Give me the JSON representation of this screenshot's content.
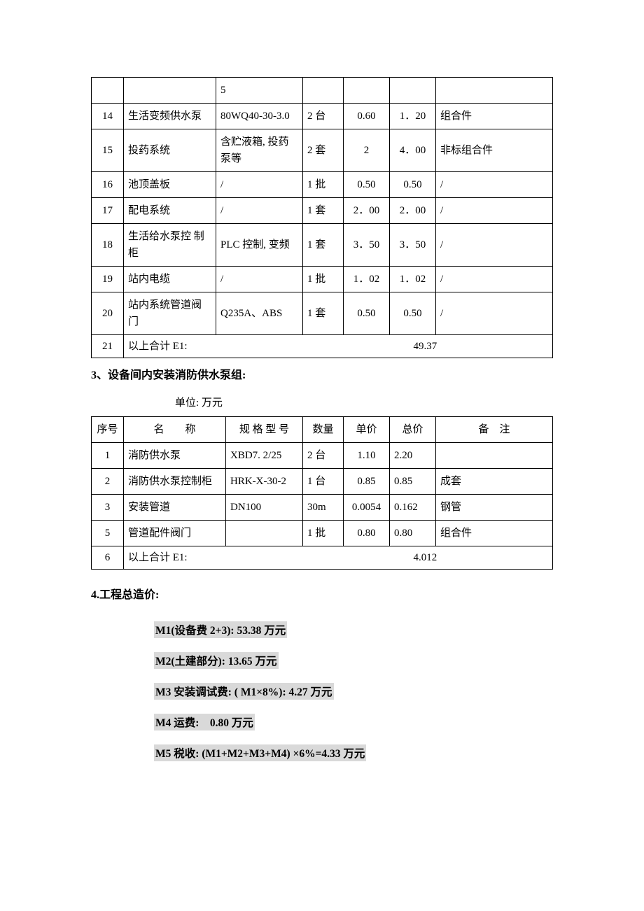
{
  "table1": {
    "rows": [
      {
        "no": "",
        "name": "",
        "spec": "5",
        "qty": "",
        "unit_price": "",
        "total": "",
        "remark": ""
      },
      {
        "no": "14",
        "name": "生活变频供水泵",
        "spec": "80WQ40-30-3.0",
        "qty": "2 台",
        "unit_price": "0.60",
        "total": "1．20",
        "remark": "组合件"
      },
      {
        "no": "15",
        "name": "投药系统",
        "spec": "含贮液箱, 投药泵等",
        "qty": "2 套",
        "unit_price": "2",
        "total": "4．00",
        "remark": "非标组合件"
      },
      {
        "no": "16",
        "name": "池顶盖板",
        "spec": "/",
        "qty": "1 批",
        "unit_price": "0.50",
        "total": "0.50",
        "remark": "/"
      },
      {
        "no": "17",
        "name": "配电系统",
        "spec": "/",
        "qty": "1 套",
        "unit_price": "2．00",
        "total": "2．00",
        "remark": "/"
      },
      {
        "no": "18",
        "name": "生活给水泵控 制柜",
        "spec": "PLC 控制, 变频",
        "qty": "1 套",
        "unit_price": "3．50",
        "total": "3．50",
        "remark": "/"
      },
      {
        "no": "19",
        "name": "站内电缆",
        "spec": "/",
        "qty": "1 批",
        "unit_price": "1．02",
        "total": "1．02",
        "remark": "/"
      },
      {
        "no": "20",
        "name": "站内系统管道阀门",
        "spec": "Q235A、ABS",
        "qty": "1 套",
        "unit_price": "0.50",
        "total": "0.50",
        "remark": "/"
      }
    ],
    "footer_no": "21",
    "footer_label": "以上合计 E1:",
    "footer_total": "49.37"
  },
  "section3_heading": "3、设备间内安装消防供水泵组:",
  "unit_label": "单位: 万元",
  "table2": {
    "headers": {
      "no": "序号",
      "name": "名　　称",
      "spec": "规 格 型 号",
      "qty": "数量",
      "unit_price": "单价",
      "total": "总价",
      "remark": "备　注"
    },
    "rows": [
      {
        "no": "1",
        "name": "消防供水泵",
        "spec": "XBD7. 2/25",
        "qty": "2 台",
        "unit_price": "1.10",
        "total": "2.20",
        "remark": ""
      },
      {
        "no": "2",
        "name": "消防供水泵控制柜",
        "spec": "HRK-X-30-2",
        "qty": "1 台",
        "unit_price": "0.85",
        "total": "0.85",
        "remark": "成套"
      },
      {
        "no": "3",
        "name": "安装管道",
        "spec": "DN100",
        "qty": "30m",
        "unit_price": "0.0054",
        "total": "0.162",
        "remark": "钢管"
      },
      {
        "no": "5",
        "name": "管道配件阀门",
        "spec": "",
        "qty": "1 批",
        "unit_price": "0.80",
        "total": "0.80",
        "remark": "组合件"
      }
    ],
    "footer_no": "6",
    "footer_label": "以上合计 E1:",
    "footer_total": "4.012"
  },
  "section4_heading": "4.工程总造价:",
  "cost_lines": [
    "M1(设备费 2+3): 53.38 万元",
    "M2(土建部分): 13.65 万元",
    "M3 安装调试费: ( M1×8%): 4.27 万元",
    "M4 运费:　0.80 万元",
    "M5 税收: (M1+M2+M3+M4) ×6%=4.33 万元"
  ]
}
